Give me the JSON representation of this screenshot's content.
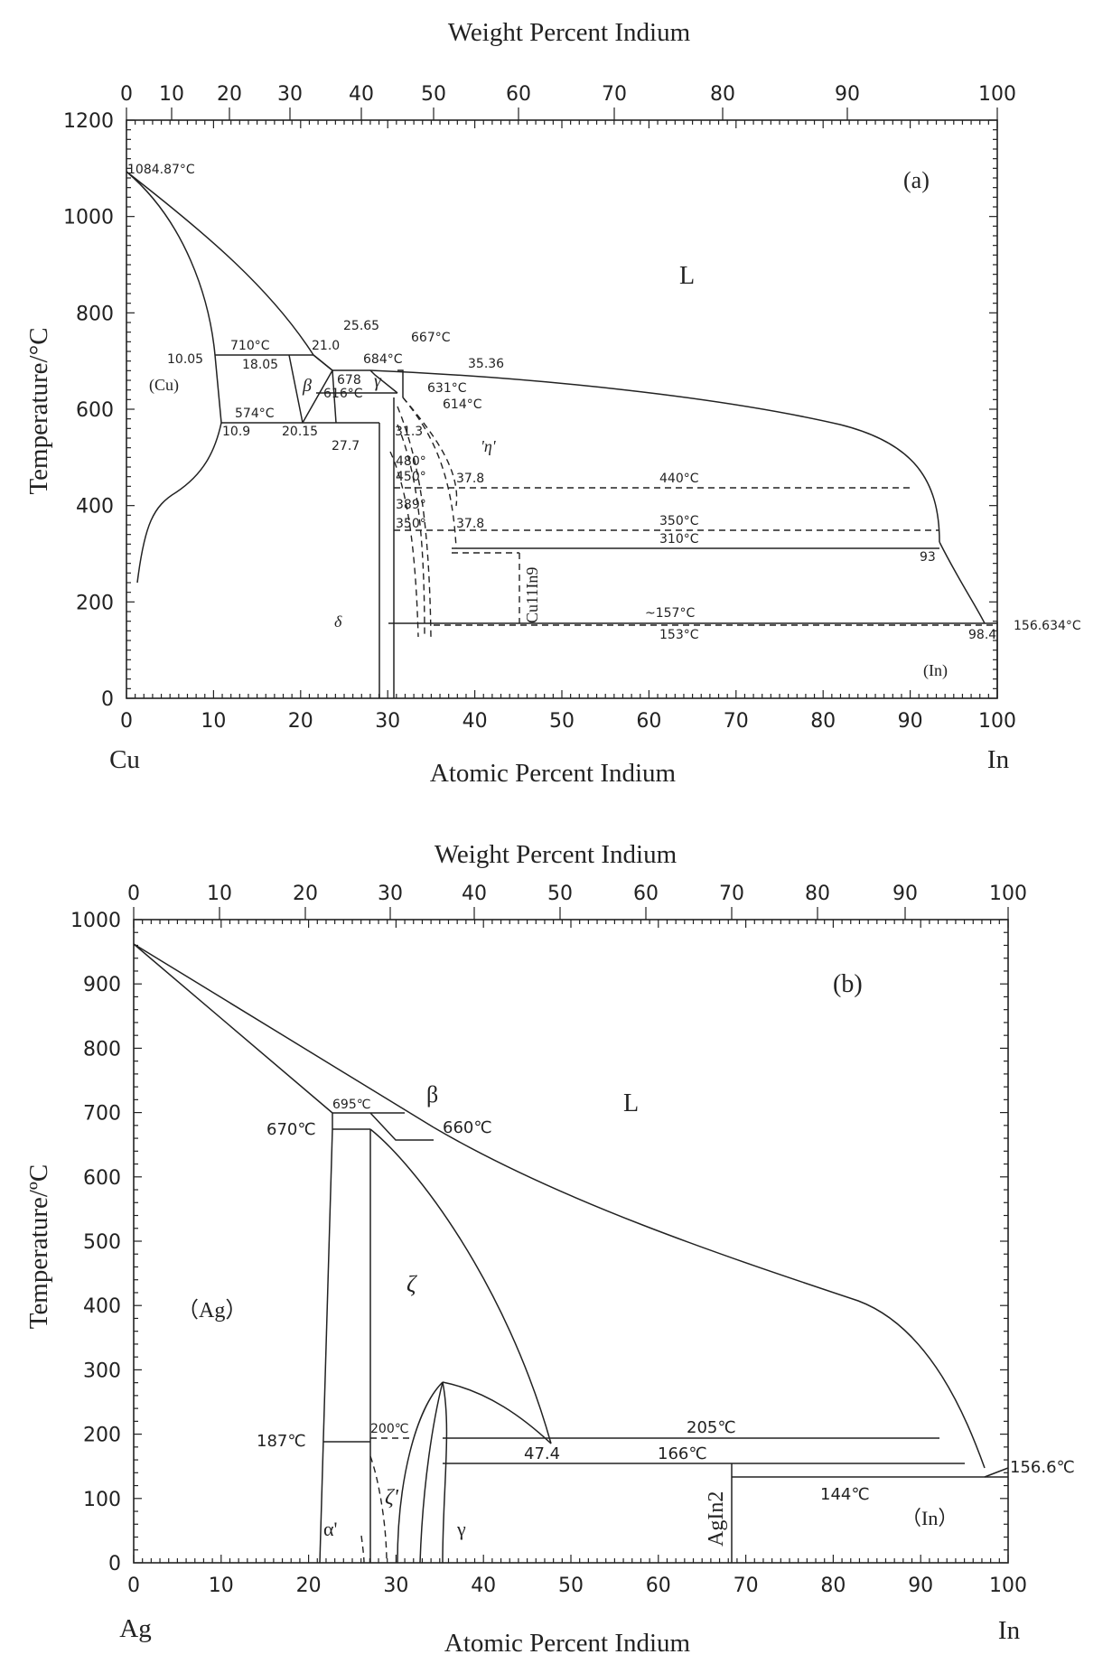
{
  "panels": [
    {
      "id": "a",
      "tag": "(a)",
      "top_axis_title": "Weight Percent Indium",
      "bottom_axis_title": "Atomic Percent Indium",
      "y_axis_title": "Temperature/°C",
      "left_element": "Cu",
      "right_element": "In",
      "top_ticks": [
        {
          "v": 0,
          "label": "0"
        },
        {
          "v": 10,
          "label": "10"
        },
        {
          "v": 20,
          "label": "20"
        },
        {
          "v": 30,
          "label": "30"
        },
        {
          "v": 40,
          "label": "40"
        },
        {
          "v": 50,
          "label": "50"
        },
        {
          "v": 60,
          "label": "60"
        },
        {
          "v": 70,
          "label": "70"
        },
        {
          "v": 80,
          "label": "80"
        },
        {
          "v": 90,
          "label": "90"
        },
        {
          "v": 100,
          "label": "100"
        }
      ],
      "x_ticks": [
        "0",
        "10",
        "20",
        "30",
        "40",
        "50",
        "60",
        "70",
        "80",
        "90",
        "100"
      ],
      "y_ticks": [
        "0",
        "200",
        "400",
        "600",
        "800",
        "1000",
        "1200"
      ],
      "labels": {
        "melt_cu": "1084.87°C",
        "liquid": "L",
        "cu_phase": "(Cu)",
        "beta": "β",
        "gamma": "γ",
        "delta": "δ",
        "eta": "'η'",
        "in_phase": "(In)",
        "cu11in9": "Cu11In9",
        "t710": "710°C",
        "c1005": "10.05",
        "c1805": "18.05",
        "c210": "21.0",
        "c2565": "25.65",
        "t684": "684°C",
        "t667": "667°C",
        "c3536": "35.36",
        "c678": "678",
        "t616": "616°C",
        "t631": "631°C",
        "t614": "614°C",
        "t574": "574°C",
        "c109": "10.9",
        "c2015": "20.15",
        "c277": "27.7",
        "c313": "31.3",
        "t480": "480°",
        "t450": "450°",
        "c378a": "37.8",
        "t440": "440°C",
        "t389": "389°",
        "t350s": "350°",
        "c378b": "37.8",
        "t350": "350°C",
        "t310": "310°C",
        "c93": "93",
        "t157": "~157°C",
        "t153": "153°C",
        "c984": "98.4",
        "t156634": "156.634°C"
      }
    },
    {
      "id": "b",
      "tag": "(b)",
      "top_axis_title": "Weight Percent Indium",
      "bottom_axis_title": "Atomic Percent Indium",
      "y_axis_title": "Temperature/ºC",
      "left_element": "Ag",
      "right_element": "In",
      "top_ticks": [
        "0",
        "10",
        "20",
        "30",
        "40",
        "50",
        "60",
        "70",
        "80",
        "90",
        "100"
      ],
      "x_ticks": [
        "0",
        "10",
        "20",
        "30",
        "40",
        "50",
        "60",
        "70",
        "80",
        "90",
        "100"
      ],
      "y_ticks": [
        "0",
        "100",
        "200",
        "300",
        "400",
        "500",
        "600",
        "700",
        "800",
        "900",
        "1000"
      ],
      "labels": {
        "liquid": "L",
        "beta": "β",
        "zeta": "ζ",
        "zeta_p": "ζ'",
        "alpha_p": "α'",
        "gamma": "γ",
        "ag_phase": "（Ag）",
        "in_phase": "（In）",
        "agin2": "AgIn2",
        "t695": "695℃",
        "t670": "670℃",
        "t660": "660℃",
        "t200": "200℃",
        "t187": "187℃",
        "t205": "205℃",
        "c474": "47.4",
        "t166": "166℃",
        "t144": "144℃",
        "t1566": "156.6℃"
      }
    }
  ]
}
